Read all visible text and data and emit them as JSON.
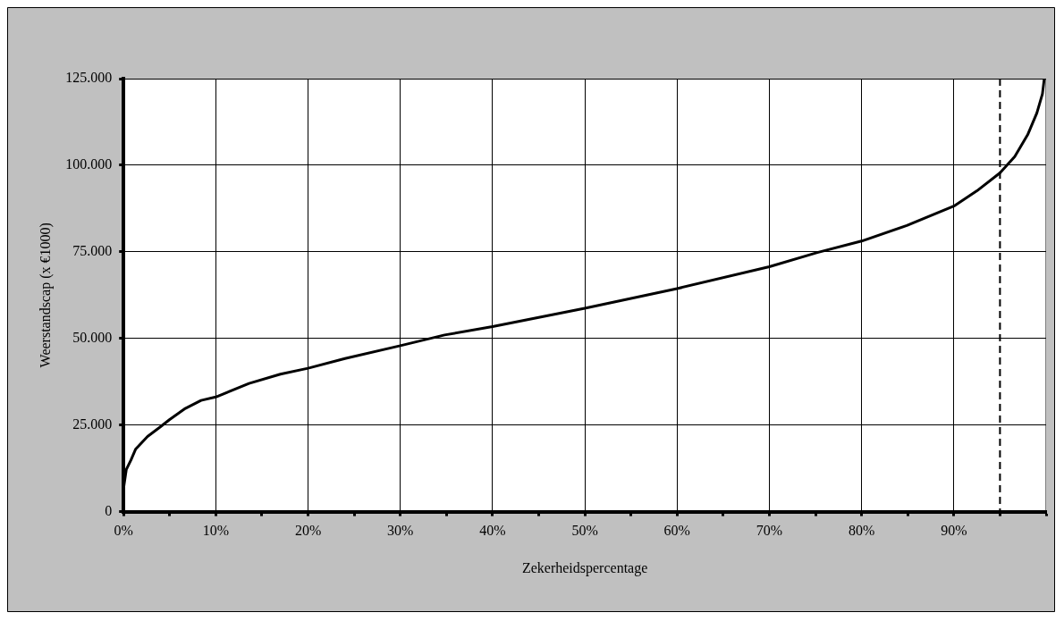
{
  "chart_data": {
    "type": "line",
    "xlabel": "Zekerheidspercentage",
    "ylabel": "Weerstandscap (x €1000)",
    "series": [
      {
        "color": "#000000",
        "x": [
          0,
          0.3,
          0.8,
          1.3,
          2.6,
          3.95,
          5,
          6.7,
          8.4,
          10,
          13.6,
          17,
          20,
          24,
          30,
          34.8,
          40,
          50,
          60,
          70,
          75.2,
          80,
          84.9,
          90,
          92.5,
          95,
          96.6,
          98,
          99,
          99.6,
          99.8
        ],
        "values": [
          6800,
          12200,
          14900,
          18000,
          21700,
          24400,
          26600,
          29800,
          32100,
          33100,
          37000,
          39700,
          41400,
          44200,
          47900,
          51000,
          53400,
          58700,
          64400,
          70700,
          74800,
          78100,
          82600,
          88200,
          92600,
          97800,
          102500,
          108800,
          115100,
          120600,
          125000
        ]
      }
    ],
    "xlim": [
      0,
      100
    ],
    "xticks": [
      {
        "value": 0,
        "label": "0%"
      },
      {
        "value": 5,
        "label": null
      },
      {
        "value": 10,
        "label": "10%"
      },
      {
        "value": 15,
        "label": null
      },
      {
        "value": 20,
        "label": "20%"
      },
      {
        "value": 25,
        "label": null
      },
      {
        "value": 30,
        "label": "30%"
      },
      {
        "value": 35,
        "label": null
      },
      {
        "value": 40,
        "label": "40%"
      },
      {
        "value": 45,
        "label": null
      },
      {
        "value": 50,
        "label": "50%"
      },
      {
        "value": 55,
        "label": null
      },
      {
        "value": 60,
        "label": "60%"
      },
      {
        "value": 65,
        "label": null
      },
      {
        "value": 70,
        "label": "70%"
      },
      {
        "value": 75,
        "label": null
      },
      {
        "value": 80,
        "label": "80%"
      },
      {
        "value": 85,
        "label": null
      },
      {
        "value": 90,
        "label": "90%"
      },
      {
        "value": 95,
        "label": null
      },
      {
        "value": 100,
        "label": null
      }
    ],
    "ylim": [
      0,
      125000
    ],
    "yticks": [
      0,
      {
        "value": 25000,
        "label": "25.000"
      },
      {
        "value": 50000,
        "label": "50.000"
      },
      {
        "value": 75000,
        "label": "75.000"
      },
      {
        "value": 100000,
        "label": "100.000"
      },
      {
        "value": 125000,
        "label": "125.000"
      }
    ],
    "ref_lines": [
      {
        "axis": "x",
        "value": 95,
        "color": "#000000",
        "line_style": "dashed"
      }
    ],
    "grid": true,
    "legend": false,
    "marker": "none",
    "line_style": "solid"
  }
}
